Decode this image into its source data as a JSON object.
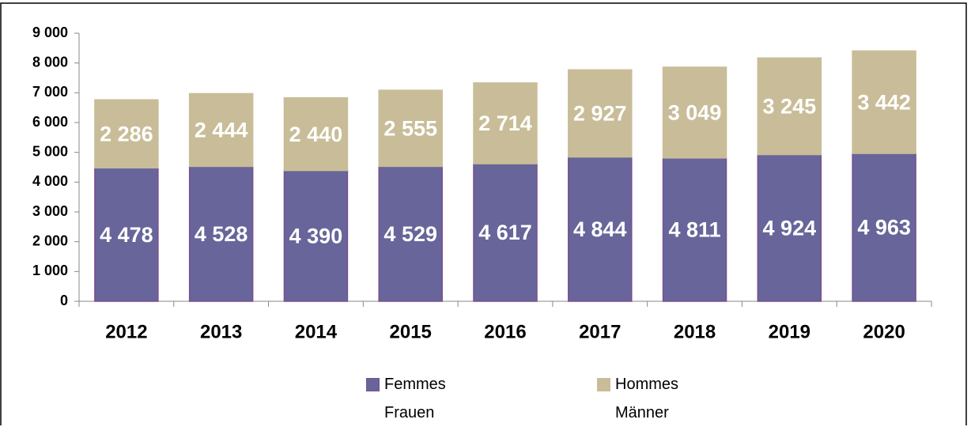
{
  "chart_data": {
    "type": "bar",
    "stacked": true,
    "categories": [
      "2012",
      "2013",
      "2014",
      "2015",
      "2016",
      "2017",
      "2018",
      "2019",
      "2020"
    ],
    "series": [
      {
        "name": "Femmes\nFrauen",
        "color": "#67659a",
        "values": [
          4478,
          4528,
          4390,
          4529,
          4617,
          4844,
          4811,
          4924,
          4963
        ],
        "value_labels": [
          "4 478",
          "4 528",
          "4 390",
          "4 529",
          "4 617",
          "4 844",
          "4 811",
          "4 924",
          "4 963"
        ]
      },
      {
        "name": "Hommes\nMänner",
        "color": "#c8bd98",
        "values": [
          2286,
          2444,
          2440,
          2555,
          2714,
          2927,
          3049,
          3245,
          3442
        ],
        "value_labels": [
          "2 286",
          "2 444",
          "2 440",
          "2 555",
          "2 714",
          "2 927",
          "3 049",
          "3 245",
          "3 442"
        ]
      }
    ],
    "ylim": [
      0,
      9000
    ],
    "yticks": [
      0,
      {
        "value": 1000,
        "label": "1 000"
      },
      {
        "value": 2000,
        "label": "2 000"
      },
      {
        "value": 3000,
        "label": "3 000"
      },
      {
        "value": 4000,
        "label": "4 000"
      },
      {
        "value": 5000,
        "label": "5 000"
      },
      {
        "value": 6000,
        "label": "6 000"
      },
      {
        "value": 7000,
        "label": "7 000"
      },
      {
        "value": 8000,
        "label": "8 000"
      },
      {
        "value": 9000,
        "label": "9 000"
      }
    ],
    "grid": false,
    "legend": "bottom"
  }
}
